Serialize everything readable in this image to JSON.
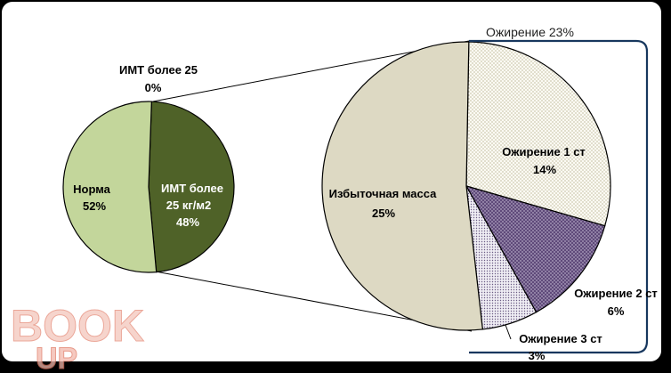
{
  "chart_data": {
    "type": "pie",
    "title": "",
    "charts": [
      {
        "name": "primary",
        "slices": [
          {
            "key": "imt_over25_kgm2",
            "label": "ИМТ более 25 кг/м2",
            "value": 48,
            "pct_label": "48%",
            "color": "#4f6228"
          },
          {
            "key": "imt_over25_zero",
            "label": "ИМТ более 25",
            "value": 0,
            "pct_label": "0%",
            "color": "#4f6228"
          },
          {
            "key": "norma",
            "label": "Норма",
            "value": 52,
            "pct_label": "52%",
            "color": "#c3d69b"
          }
        ]
      },
      {
        "name": "breakdown",
        "slices": [
          {
            "key": "obesity1",
            "label": "Ожирение 1 ст",
            "value": 14,
            "pct_label": "14%",
            "color": "#f2f0e6",
            "pattern": "dots"
          },
          {
            "key": "obesity2",
            "label": "Ожирение 2 ст",
            "value": 6,
            "pct_label": "6%",
            "color": "#5f4a7a",
            "pattern": "dots-dark"
          },
          {
            "key": "obesity3",
            "label": "Ожирение 3 ст",
            "value": 3,
            "pct_label": "3%",
            "color": "#d8d4e2",
            "pattern": "dots-light"
          },
          {
            "key": "excess",
            "label": "Избыточная масса",
            "value": 25,
            "pct_label": "25%",
            "color": "#ddd9c3"
          }
        ]
      }
    ],
    "bracket_label": "Ожирение 23%"
  },
  "watermark": {
    "line1": "BOOK",
    "line2": "UP"
  }
}
